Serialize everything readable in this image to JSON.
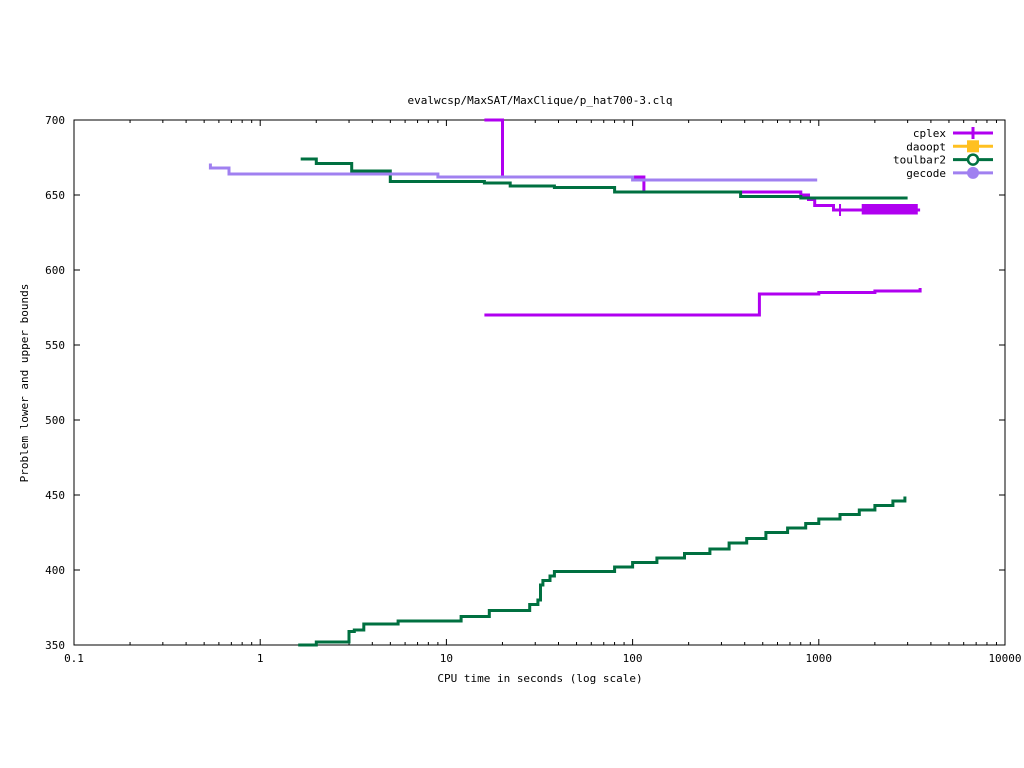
{
  "chart_data": {
    "type": "line",
    "title": "evalwcsp/MaxSAT/MaxClique/p_hat700-3.clq",
    "xlabel": "CPU time in seconds (log scale)",
    "ylabel": "Problem lower and upper bounds",
    "xscale": "log",
    "xlim": [
      0.1,
      10000
    ],
    "ylim": [
      350,
      700
    ],
    "x_ticks": [
      0.1,
      1,
      10,
      100,
      1000,
      10000
    ],
    "x_tick_labels": [
      "0.1",
      "1",
      "10",
      "100",
      "1000",
      "10000"
    ],
    "y_ticks": [
      350,
      400,
      450,
      500,
      550,
      600,
      650,
      700
    ],
    "y_tick_labels": [
      "350",
      "400",
      "450",
      "500",
      "550",
      "600",
      "650",
      "700"
    ],
    "legend_position": "top-right",
    "grid": false,
    "series": [
      {
        "name": "cplex",
        "color": "#b000f0",
        "marker": "plus",
        "segments": [
          [
            [
              16,
              700
            ],
            [
              20,
              700
            ],
            [
              20,
              662
            ],
            [
              115,
              662
            ],
            [
              115,
              652
            ],
            [
              330,
              652
            ],
            [
              330,
              652
            ],
            [
              500,
              652
            ],
            [
              500,
              652
            ],
            [
              800,
              652
            ],
            [
              800,
              650
            ],
            [
              880,
              650
            ],
            [
              880,
              647
            ],
            [
              950,
              647
            ],
            [
              950,
              643
            ],
            [
              1200,
              643
            ],
            [
              1200,
              640
            ],
            [
              3500,
              640
            ]
          ],
          [
            [
              16,
              570
            ],
            [
              480,
              570
            ],
            [
              480,
              584
            ],
            [
              1000,
              584
            ],
            [
              1000,
              585
            ],
            [
              2000,
              585
            ],
            [
              2000,
              586
            ],
            [
              3500,
              586
            ],
            [
              3500,
              588
            ]
          ]
        ],
        "error_bar": {
          "x_from": 1700,
          "x_to": 3400,
          "y_from": 637,
          "y_to": 644
        }
      },
      {
        "name": "daoopt",
        "color": "#ffc020",
        "marker": "square",
        "segments": []
      },
      {
        "name": "toulbar2",
        "color": "#007040",
        "marker": "circle",
        "segments": [
          [
            [
              1.65,
              674
            ],
            [
              2.0,
              674
            ],
            [
              2.0,
              671
            ],
            [
              3.1,
              671
            ],
            [
              3.1,
              666
            ],
            [
              5.0,
              666
            ],
            [
              5.0,
              659
            ],
            [
              16,
              659
            ],
            [
              16,
              658
            ],
            [
              22,
              658
            ],
            [
              22,
              656
            ],
            [
              38,
              656
            ],
            [
              38,
              655
            ],
            [
              80,
              655
            ],
            [
              80,
              652
            ],
            [
              380,
              652
            ],
            [
              380,
              649
            ],
            [
              800,
              649
            ],
            [
              800,
              648
            ],
            [
              3000,
              648
            ]
          ],
          [
            [
              1.6,
              350
            ],
            [
              2.0,
              350
            ],
            [
              2.0,
              352
            ],
            [
              3.0,
              352
            ],
            [
              3.0,
              359
            ],
            [
              3.2,
              359
            ],
            [
              3.2,
              360
            ],
            [
              3.6,
              360
            ],
            [
              3.6,
              364
            ],
            [
              5.5,
              364
            ],
            [
              5.5,
              366
            ],
            [
              12,
              366
            ],
            [
              12,
              369
            ],
            [
              17,
              369
            ],
            [
              17,
              373
            ],
            [
              28,
              373
            ],
            [
              28,
              377
            ],
            [
              31,
              377
            ],
            [
              31,
              380
            ],
            [
              32,
              380
            ],
            [
              32,
              390
            ],
            [
              33,
              390
            ],
            [
              33,
              393
            ],
            [
              36,
              393
            ],
            [
              36,
              396
            ],
            [
              38,
              396
            ],
            [
              38,
              399
            ],
            [
              80,
              399
            ],
            [
              80,
              402
            ],
            [
              100,
              402
            ],
            [
              100,
              405
            ],
            [
              135,
              405
            ],
            [
              135,
              408
            ],
            [
              190,
              408
            ],
            [
              190,
              411
            ],
            [
              260,
              411
            ],
            [
              260,
              414
            ],
            [
              330,
              414
            ],
            [
              330,
              418
            ],
            [
              410,
              418
            ],
            [
              410,
              421
            ],
            [
              520,
              421
            ],
            [
              520,
              425
            ],
            [
              680,
              425
            ],
            [
              680,
              428
            ],
            [
              850,
              428
            ],
            [
              850,
              431
            ],
            [
              1000,
              431
            ],
            [
              1000,
              434
            ],
            [
              1300,
              434
            ],
            [
              1300,
              437
            ],
            [
              1650,
              437
            ],
            [
              1650,
              440
            ],
            [
              2000,
              440
            ],
            [
              2000,
              443
            ],
            [
              2500,
              443
            ],
            [
              2500,
              446
            ],
            [
              2900,
              446
            ],
            [
              2900,
              449
            ]
          ]
        ]
      },
      {
        "name": "gecode",
        "color": "#a080f0",
        "marker": "circle",
        "segments": [
          [
            [
              0.53,
              670
            ],
            [
              0.54,
              670
            ],
            [
              0.54,
              668
            ],
            [
              0.68,
              668
            ],
            [
              0.68,
              664
            ],
            [
              9.0,
              664
            ],
            [
              9.0,
              662
            ],
            [
              100,
              662
            ],
            [
              100,
              660
            ],
            [
              980,
              660
            ],
            [
              980,
              660
            ]
          ]
        ]
      }
    ]
  }
}
